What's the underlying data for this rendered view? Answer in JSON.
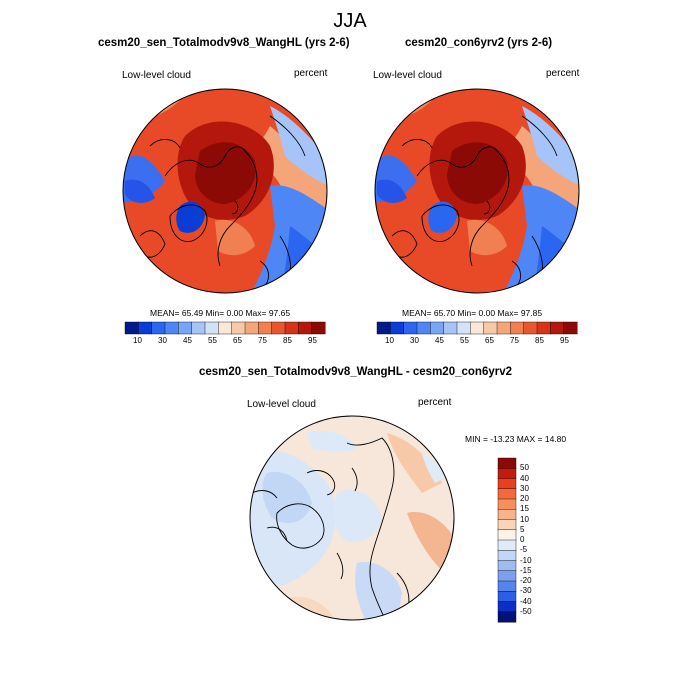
{
  "figure": {
    "title": "JJA"
  },
  "panels": [
    {
      "title": "cesm20_sen_Totalmodv9v8_WangHL (yrs 2-6)",
      "left_label": "Low-level cloud",
      "right_label": "percent",
      "stats": "MEAN=  65.49  Min=   0.00  Max=  97.65"
    },
    {
      "title": "cesm20_con6yrv2 (yrs 2-6)",
      "left_label": "Low-level cloud",
      "right_label": "percent",
      "stats": "MEAN=  65.70  Min=   0.00  Max=  97.85"
    },
    {
      "title": "cesm20_sen_Totalmodv9v8_WangHL - cesm20_con6yrv2",
      "left_label": "Low-level cloud",
      "right_label": "percent",
      "stats": "MIN = -13.23 MAX =  14.80"
    }
  ],
  "colorbar_abs": {
    "colors": [
      "#001a8c",
      "#0a3cd6",
      "#2b66f0",
      "#4f86f5",
      "#78a6f7",
      "#a6c4f7",
      "#d2e2f7",
      "#fbe7da",
      "#f7c9a8",
      "#f4a67a",
      "#f07f52",
      "#e8562f",
      "#d63318",
      "#b4180c",
      "#8c0a05"
    ],
    "tick_labels": [
      "10",
      "30",
      "45",
      "55",
      "65",
      "75",
      "85",
      "95"
    ]
  },
  "colorbar_diff": {
    "colors": [
      "#8c0a05",
      "#c21a0c",
      "#e8401e",
      "#f26a3c",
      "#f5905e",
      "#f7b38c",
      "#fad4b8",
      "#fdf2e8",
      "#e0ebf8",
      "#c2d6f5",
      "#9dbcf2",
      "#7aa0ef",
      "#5584ed",
      "#2c5ee6",
      "#0a2fc4",
      "#00117a"
    ],
    "tick_labels": [
      "50",
      "40",
      "30",
      "20",
      "15",
      "10",
      "5",
      "0",
      "-5",
      "-10",
      "-15",
      "-20",
      "-30",
      "-40",
      "-50"
    ]
  }
}
